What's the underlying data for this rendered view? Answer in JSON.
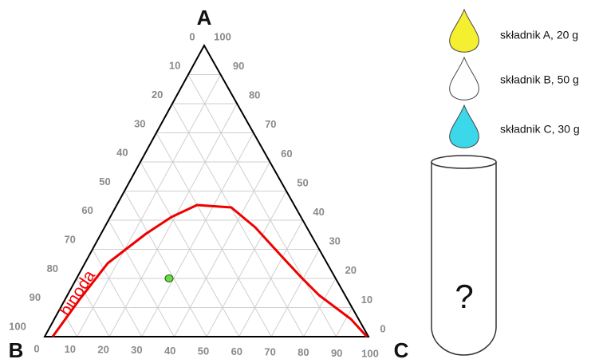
{
  "vertices": {
    "A": "A",
    "B": "B",
    "C": "C"
  },
  "ticks": {
    "left": [
      0,
      10,
      20,
      30,
      40,
      50,
      60,
      70,
      80,
      90,
      100
    ],
    "right": [
      100,
      90,
      80,
      70,
      60,
      50,
      40,
      30,
      20,
      10,
      0
    ],
    "bottom": [
      0,
      10,
      20,
      30,
      40,
      50,
      60,
      70,
      80,
      90,
      100
    ]
  },
  "curve_label": "binoda",
  "components": [
    "składnik A, 20 g",
    "składnik B, 50 g",
    "składnik C, 30 g"
  ],
  "tube_label": "?"
}
